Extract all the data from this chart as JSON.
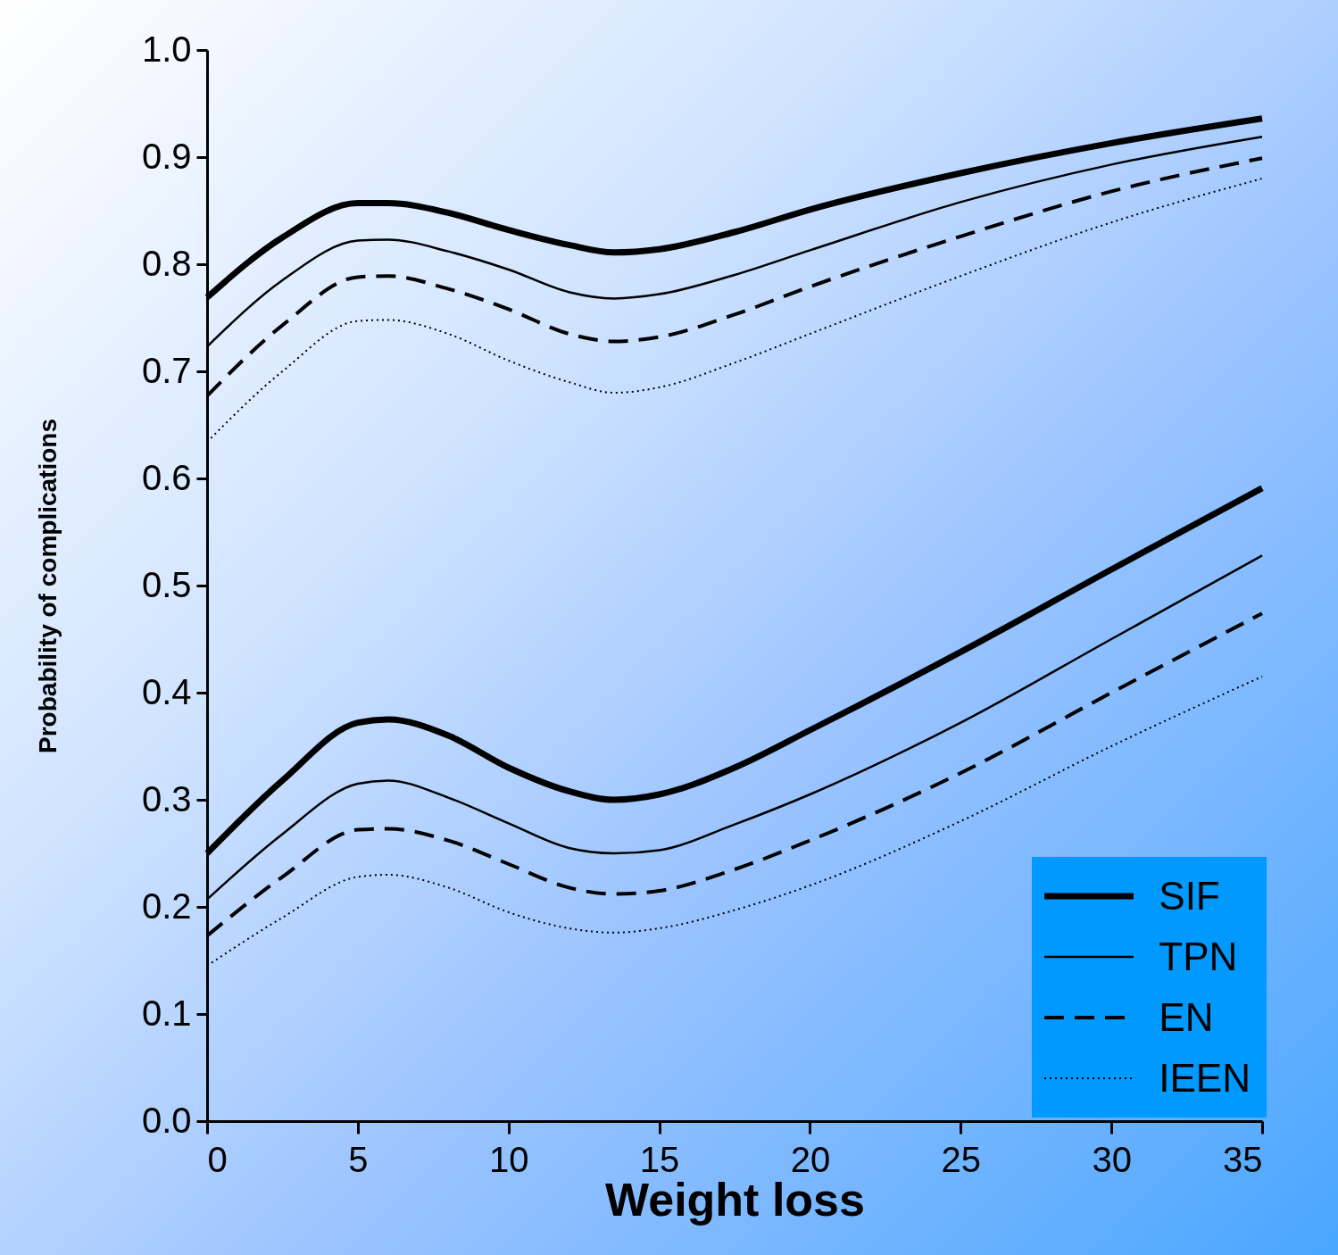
{
  "chart_data": {
    "type": "line",
    "xlabel": "Weight loss",
    "ylabel": "Probability of complications",
    "x": [
      0,
      2.5,
      5,
      6,
      8,
      10,
      12,
      13.5,
      15,
      17.5,
      20,
      25,
      30,
      35
    ],
    "series": [
      {
        "name": "SIF",
        "color": "#000000",
        "line_style": "solid",
        "values": [
          0.769,
          0.825,
          0.857,
          0.857,
          0.848,
          0.832,
          0.818,
          0.811,
          0.814,
          0.83,
          0.851,
          0.885,
          0.913,
          0.936
        ]
      },
      {
        "name": "TPN",
        "color": "#000000",
        "line_style": "solid",
        "values": [
          0.723,
          0.785,
          0.822,
          0.823,
          0.812,
          0.795,
          0.774,
          0.768,
          0.772,
          0.79,
          0.813,
          0.858,
          0.893,
          0.919
        ]
      },
      {
        "name": "EN",
        "color": "#000000",
        "line_style": "dashed",
        "values": [
          0.677,
          0.743,
          0.788,
          0.789,
          0.777,
          0.758,
          0.735,
          0.728,
          0.732,
          0.753,
          0.779,
          0.826,
          0.868,
          0.899
        ]
      },
      {
        "name": "IEEN",
        "color": "#000000",
        "line_style": "dotted",
        "values": [
          0.634,
          0.7,
          0.747,
          0.748,
          0.735,
          0.71,
          0.69,
          0.68,
          0.685,
          0.708,
          0.735,
          0.789,
          0.839,
          0.88
        ]
      },
      {
        "color": "#000000",
        "line_style": "solid",
        "values": [
          0.25,
          0.318,
          0.372,
          0.375,
          0.36,
          0.33,
          0.308,
          0.3,
          0.305,
          0.33,
          0.365,
          0.438,
          0.515,
          0.591
        ]
      },
      {
        "color": "#000000",
        "line_style": "solid",
        "values": [
          0.207,
          0.268,
          0.315,
          0.318,
          0.302,
          0.278,
          0.255,
          0.25,
          0.253,
          0.277,
          0.305,
          0.372,
          0.45,
          0.528
        ]
      },
      {
        "color": "#000000",
        "line_style": "dashed",
        "values": [
          0.173,
          0.228,
          0.272,
          0.273,
          0.262,
          0.24,
          0.218,
          0.212,
          0.215,
          0.235,
          0.262,
          0.325,
          0.4,
          0.474
        ]
      },
      {
        "color": "#000000",
        "line_style": "dotted",
        "values": [
          0.145,
          0.19,
          0.228,
          0.23,
          0.218,
          0.195,
          0.18,
          0.176,
          0.18,
          0.197,
          0.22,
          0.28,
          0.35,
          0.415
        ]
      }
    ],
    "xlim": [
      0,
      35
    ],
    "xticks": [
      0,
      5,
      10,
      15,
      20,
      25,
      30,
      35
    ],
    "ylim": [
      0,
      1
    ],
    "yticks": [
      {
        "value": 0,
        "label": "0.0"
      },
      0.1,
      0.2,
      0.3,
      0.4,
      0.5,
      0.6,
      0.7,
      0.8,
      0.9,
      {
        "value": 1,
        "label": "1.0"
      }
    ],
    "legend": "bottom right"
  }
}
